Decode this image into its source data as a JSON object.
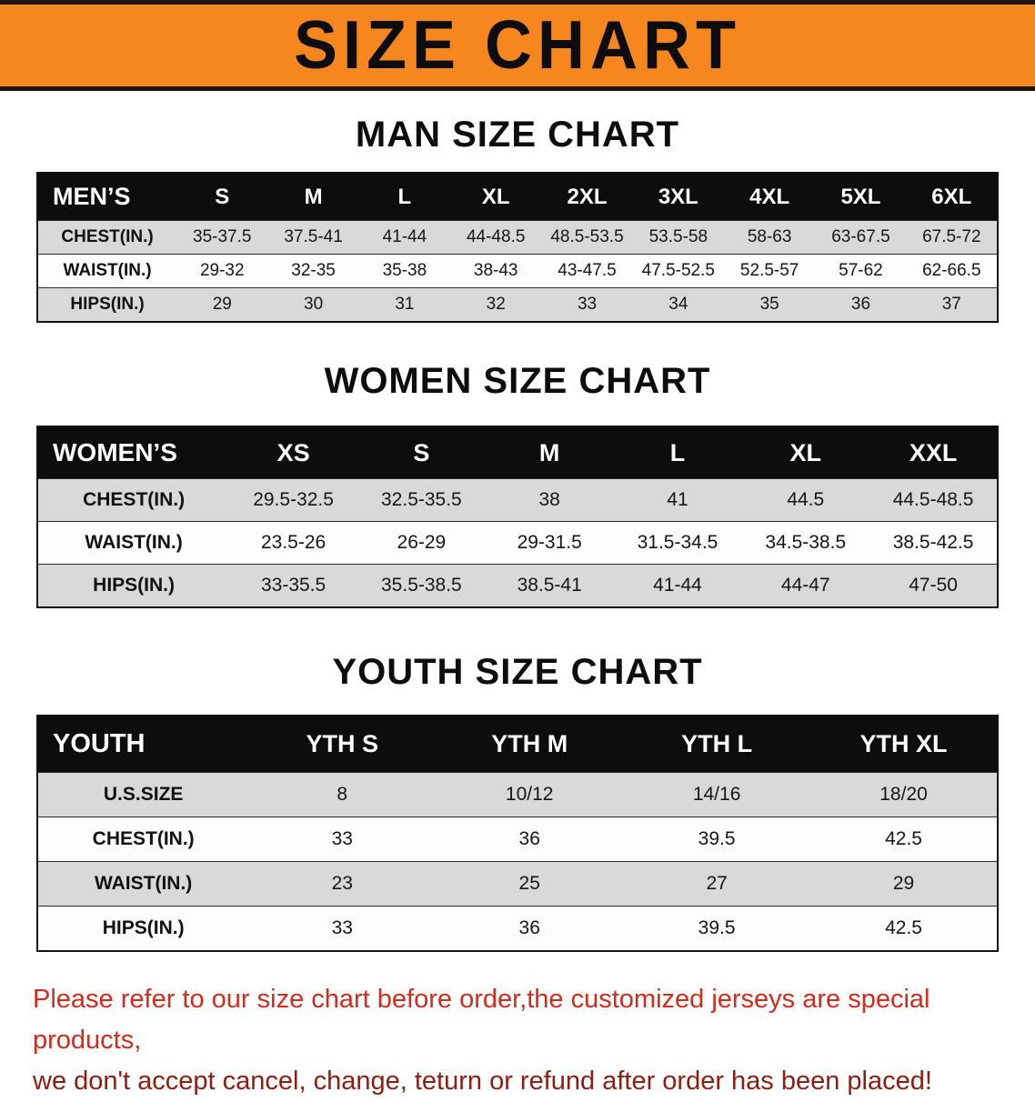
{
  "banner": {
    "title": "SIZE CHART",
    "bg_color": "#f6871f"
  },
  "sections": [
    {
      "heading": "MAN SIZE CHART",
      "table": {
        "header": [
          "MEN’S",
          "S",
          "M",
          "L",
          "XL",
          "2XL",
          "3XL",
          "4XL",
          "5XL",
          "6XL"
        ],
        "rows": [
          {
            "label": "CHEST(IN.)",
            "values": [
              "35-37.5",
              "37.5-41",
              "41-44",
              "44-48.5",
              "48.5-53.5",
              "53.5-58",
              "58-63",
              "63-67.5",
              "67.5-72"
            ]
          },
          {
            "label": "WAIST(IN.)",
            "values": [
              "29-32",
              "32-35",
              "35-38",
              "38-43",
              "43-47.5",
              "47.5-52.5",
              "52.5-57",
              "57-62",
              "62-66.5"
            ]
          },
          {
            "label": "HIPS(IN.)",
            "values": [
              "29",
              "30",
              "31",
              "32",
              "33",
              "34",
              "35",
              "36",
              "37"
            ]
          }
        ]
      }
    },
    {
      "heading": "WOMEN SIZE CHART",
      "table": {
        "header": [
          "WOMEN’S",
          "XS",
          "S",
          "M",
          "L",
          "XL",
          "XXL"
        ],
        "rows": [
          {
            "label": "CHEST(IN.)",
            "values": [
              "29.5-32.5",
              "32.5-35.5",
              "38",
              "41",
              "44.5",
              "44.5-48.5"
            ]
          },
          {
            "label": "WAIST(IN.)",
            "values": [
              "23.5-26",
              "26-29",
              "29-31.5",
              "31.5-34.5",
              "34.5-38.5",
              "38.5-42.5"
            ]
          },
          {
            "label": "HIPS(IN.)",
            "values": [
              "33-35.5",
              "35.5-38.5",
              "38.5-41",
              "41-44",
              "44-47",
              "47-50"
            ]
          }
        ]
      }
    },
    {
      "heading": "YOUTH SIZE CHART",
      "table": {
        "header": [
          "YOUTH",
          "YTH S",
          "YTH M",
          "YTH L",
          "YTH XL"
        ],
        "rows": [
          {
            "label": "U.S.SIZE",
            "values": [
              "8",
              "10/12",
              "14/16",
              "18/20"
            ]
          },
          {
            "label": "CHEST(IN.)",
            "values": [
              "33",
              "36",
              "39.5",
              "42.5"
            ]
          },
          {
            "label": "WAIST(IN.)",
            "values": [
              "23",
              "25",
              "27",
              "29"
            ]
          },
          {
            "label": "HIPS(IN.)",
            "values": [
              "33",
              "36",
              "39.5",
              "42.5"
            ]
          }
        ]
      }
    }
  ],
  "footer": {
    "line1": "Please refer to our size chart before order,the customized jerseys are special products,",
    "line2": "we don't accept cancel, change, teturn or refund after order has been placed!"
  },
  "colors": {
    "banner_orange": "#f6871f",
    "header_black": "#0d0d0d",
    "row_gray": "#d9d9d9",
    "notice_red": "#d42b1c",
    "notice_dark_red": "#8f1d12"
  }
}
